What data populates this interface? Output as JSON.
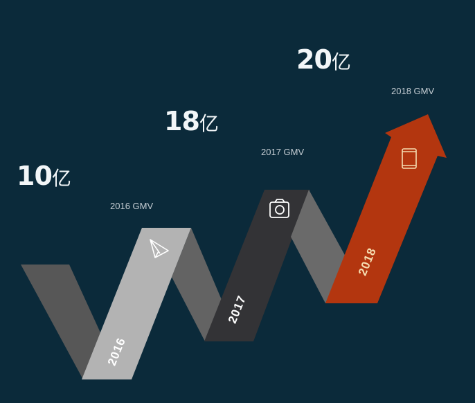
{
  "values": [
    {
      "amount": "10",
      "unit": "亿",
      "label": "2016 GMV",
      "year": "2016",
      "icon": "paper-plane-icon"
    },
    {
      "amount": "18",
      "unit": "亿",
      "label": "2017 GMV",
      "year": "2017",
      "icon": "camera-icon"
    },
    {
      "amount": "20",
      "unit": "亿",
      "label": "2018 GMV",
      "year": "2018",
      "icon": "smartphone-icon"
    }
  ],
  "colors": {
    "background": "#0b2a3a",
    "band_light": "#b3b3b3",
    "band_mid": "#5e5e5e",
    "band_dark": "#333336",
    "arrow": "#b3360f",
    "arrow_text": "#f6deb2"
  }
}
